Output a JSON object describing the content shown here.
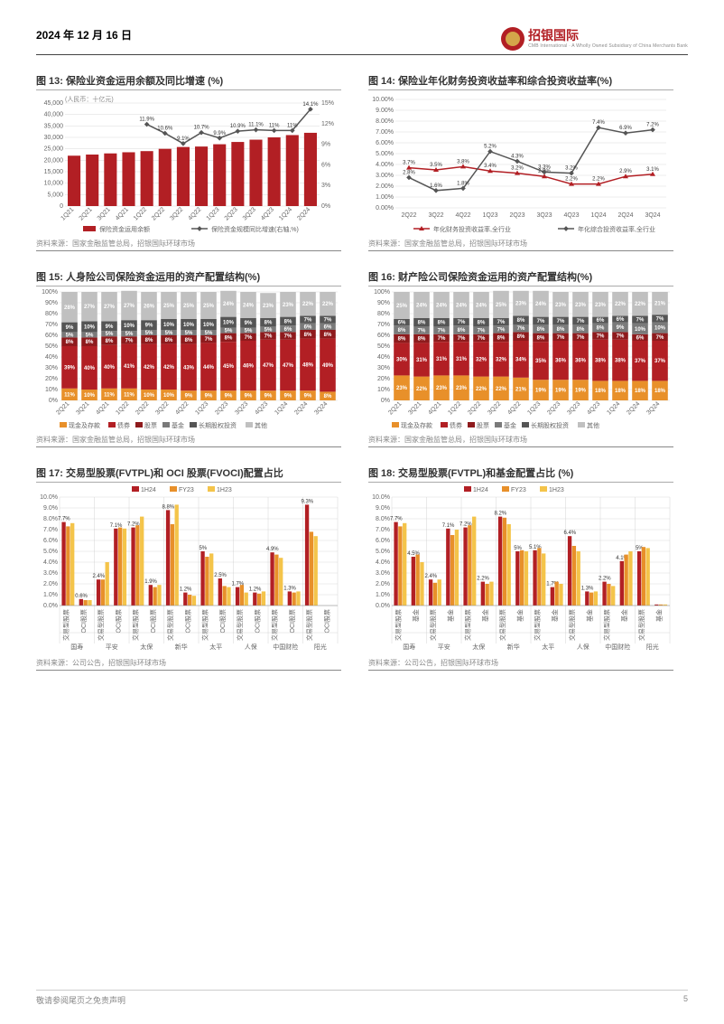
{
  "header": {
    "date": "2024 年 12 月 16 日",
    "brand": "招银国际",
    "brand_sub": "CMB International · A Wholly Owned Subsidiary of China Merchants Bank"
  },
  "footer": {
    "disclaimer": "敬请参阅尾页之免责声明",
    "page": "5"
  },
  "colors": {
    "red": "#b21f24",
    "dark_red": "#8e1a1c",
    "orange": "#e8902a",
    "dark_orange": "#c66a1a",
    "grey": "#7a7a7a",
    "light_grey": "#c0c0c0",
    "dark_grey": "#555",
    "yellow": "#f4c44a",
    "bg": "#ffffff",
    "grid": "#d9d9d9"
  },
  "fig13": {
    "title": "图 13: 保险业资金运用余额及同比增速 (%)",
    "source": "资料来源：国家金融监管总局，招银国际环球市场",
    "y_unit": "(人民币：十亿元)",
    "x": [
      "1Q21",
      "2Q21",
      "3Q21",
      "4Q21",
      "1Q22",
      "2Q22",
      "3Q22",
      "4Q22",
      "1Q23",
      "2Q23",
      "3Q23",
      "4Q23",
      "1Q24",
      "2Q24"
    ],
    "bars": [
      22000,
      22500,
      23000,
      23500,
      24000,
      25000,
      25800,
      26000,
      27000,
      28000,
      29000,
      30000,
      31000,
      32000
    ],
    "bar_color": "#b21f24",
    "line": [
      null,
      null,
      null,
      null,
      11.9,
      10.6,
      9.1,
      10.7,
      9.9,
      10.9,
      11.1,
      11.0,
      11.0,
      14.1
    ],
    "line_color": "#555",
    "y_left_max": 45000,
    "y_left_step": 5000,
    "y_right_max": 15,
    "y_right_step": 3,
    "legend": [
      "保险资金运用余额",
      "保险资金规模同比增速(右轴,%)"
    ]
  },
  "fig14": {
    "title": "图 14: 保险业年化财务投资收益率和综合投资收益率(%)",
    "source": "资料来源：国家金融监管总局，招银国际环球市场",
    "x": [
      "2Q22",
      "3Q22",
      "4Q22",
      "1Q23",
      "2Q23",
      "3Q23",
      "4Q23",
      "1Q24",
      "2Q24",
      "3Q24"
    ],
    "series": [
      {
        "name": "年化财务投资收益率,全行业",
        "color": "#b21f24",
        "marker": "triangle",
        "values": [
          3.7,
          3.5,
          3.8,
          3.4,
          3.2,
          2.9,
          2.2,
          2.2,
          2.9,
          3.1
        ]
      },
      {
        "name": "年化综合投资收益率,全行业",
        "color": "#555",
        "marker": "diamond",
        "values": [
          2.8,
          1.6,
          1.8,
          5.2,
          4.3,
          3.3,
          3.2,
          7.4,
          6.9,
          7.2
        ]
      }
    ],
    "y_max": 10,
    "y_step": 1
  },
  "fig15": {
    "title": "图 15: 人身险公司保险资金运用的资产配置结构(%)",
    "source": "资料来源：国家金融监管总局，招银国际环球市场",
    "x": [
      "2Q21",
      "3Q21",
      "4Q21",
      "1Q22",
      "2Q22",
      "3Q22",
      "4Q22",
      "1Q23",
      "2Q23",
      "3Q23",
      "4Q23",
      "1Q24",
      "2Q24",
      "3Q24"
    ],
    "legend": [
      "现金及存款",
      "债券",
      "股票",
      "基金",
      "长期股权投资",
      "其他"
    ],
    "colors": [
      "#e8902a",
      "#b21f24",
      "#8e1a1c",
      "#7a7a7a",
      "#555",
      "#c0c0c0"
    ],
    "stacks": [
      [
        11,
        39,
        8,
        5,
        9,
        28
      ],
      [
        10,
        40,
        8,
        5,
        10,
        27
      ],
      [
        11,
        40,
        8,
        5,
        9,
        27
      ],
      [
        11,
        41,
        7,
        5,
        10,
        27
      ],
      [
        10,
        42,
        8,
        5,
        9,
        26
      ],
      [
        10,
        42,
        8,
        5,
        10,
        25
      ],
      [
        9,
        43,
        8,
        5,
        10,
        25
      ],
      [
        9,
        44,
        7,
        5,
        10,
        25
      ],
      [
        9,
        45,
        8,
        5,
        10,
        24
      ],
      [
        9,
        46,
        7,
        5,
        9,
        24
      ],
      [
        9,
        47,
        7,
        5,
        8,
        23
      ],
      [
        9,
        47,
        7,
        6,
        8,
        23
      ],
      [
        9,
        48,
        8,
        6,
        7,
        22
      ],
      [
        8,
        49,
        8,
        6,
        7,
        22
      ]
    ],
    "y_max": 100,
    "y_step": 10
  },
  "fig16": {
    "title": "图 16: 财产险公司保险资金运用的资产配置结构(%)",
    "source": "资料来源：国家金融监管总局，招银国际环球市场",
    "x": [
      "2Q21",
      "3Q21",
      "4Q21",
      "1Q22",
      "2Q22",
      "3Q22",
      "4Q22",
      "1Q23",
      "2Q23",
      "3Q23",
      "4Q23",
      "1Q24",
      "2Q24",
      "3Q24"
    ],
    "legend": [
      "现金及存款",
      "债券",
      "股票",
      "基金",
      "长期股权投资",
      "其他"
    ],
    "colors": [
      "#e8902a",
      "#b21f24",
      "#8e1a1c",
      "#7a7a7a",
      "#555",
      "#c0c0c0"
    ],
    "stacks": [
      [
        23,
        30,
        8,
        8,
        6,
        25
      ],
      [
        22,
        31,
        8,
        7,
        8,
        24
      ],
      [
        23,
        31,
        7,
        7,
        8,
        24
      ],
      [
        23,
        31,
        7,
        8,
        7,
        24
      ],
      [
        22,
        32,
        7,
        7,
        8,
        24
      ],
      [
        22,
        32,
        8,
        7,
        7,
        25
      ],
      [
        21,
        34,
        8,
        7,
        8,
        23
      ],
      [
        19,
        35,
        8,
        8,
        7,
        24
      ],
      [
        19,
        36,
        7,
        8,
        7,
        23
      ],
      [
        19,
        36,
        7,
        8,
        7,
        23
      ],
      [
        18,
        38,
        7,
        8,
        6,
        23
      ],
      [
        18,
        38,
        7,
        9,
        6,
        22
      ],
      [
        18,
        37,
        6,
        10,
        7,
        22
      ],
      [
        18,
        37,
        7,
        10,
        7,
        21
      ]
    ],
    "y_max": 100,
    "y_step": 10
  },
  "fig17": {
    "title": "图 17: 交易型股票(FVTPL)和 OCI 股票(FVOCI)配置占比",
    "source": "资料来源：公司公告，招银国际环球市场",
    "legend": [
      "1H24",
      "FY23",
      "1H23"
    ],
    "leg_colors": [
      "#b21f24",
      "#e8902a",
      "#f4c44a"
    ],
    "companies": [
      "国寿",
      "平安",
      "太保",
      "新华",
      "太平",
      "人保",
      "中国财险",
      "阳光"
    ],
    "subcats": [
      "交易型股票",
      "OCI股票"
    ],
    "data": [
      [
        [
          7.7,
          7.3,
          7.6
        ],
        [
          0.6,
          0.5,
          0.5
        ]
      ],
      [
        [
          2.4,
          2.4,
          4.0
        ],
        [
          7.1,
          7.2,
          7.1
        ]
      ],
      [
        [
          7.2,
          7.4,
          8.2
        ],
        [
          1.9,
          1.7,
          1.9
        ]
      ],
      [
        [
          8.8,
          7.5,
          9.3
        ],
        [
          1.2,
          1.0,
          0.9
        ]
      ],
      [
        [
          5.0,
          4.5,
          4.8
        ],
        [
          2.5,
          1.8,
          1.7
        ]
      ],
      [
        [
          1.7,
          1.9,
          1.2
        ],
        [
          1.2,
          1.1,
          1.3
        ]
      ],
      [
        [
          4.9,
          4.7,
          4.4
        ],
        [
          1.3,
          1.2,
          1.3
        ]
      ],
      [
        [
          9.3,
          6.8,
          6.4
        ],
        [
          0.0,
          0.0,
          0.0
        ]
      ]
    ],
    "y_max": 10,
    "y_step": 1
  },
  "fig18": {
    "title": "图 18: 交易型股票(FVTPL)和基金配置占比 (%)",
    "source": "资料来源：公司公告，招银国际环球市场",
    "legend": [
      "1H24",
      "FY23",
      "1H23"
    ],
    "leg_colors": [
      "#b21f24",
      "#e8902a",
      "#f4c44a"
    ],
    "companies": [
      "国寿",
      "平安",
      "太保",
      "新华",
      "太平",
      "人保",
      "中国财险",
      "阳光"
    ],
    "subcats": [
      "交易型股票",
      "基金"
    ],
    "data": [
      [
        [
          7.7,
          7.3,
          7.6
        ],
        [
          4.5,
          4.7,
          4.0
        ]
      ],
      [
        [
          2.4,
          2.1,
          2.4
        ],
        [
          7.1,
          6.5,
          7.0
        ]
      ],
      [
        [
          7.2,
          7.4,
          8.2
        ],
        [
          2.2,
          2.0,
          2.2
        ]
      ],
      [
        [
          8.2,
          8.1,
          7.5
        ],
        [
          5.0,
          5.1,
          5.0
        ]
      ],
      [
        [
          5.1,
          5.3,
          4.8
        ],
        [
          1.7,
          2.2,
          2.0
        ]
      ],
      [
        [
          6.4,
          5.5,
          5.0
        ],
        [
          1.3,
          1.2,
          1.3
        ]
      ],
      [
        [
          2.2,
          2.0,
          1.8
        ],
        [
          4.1,
          4.7,
          5.0
        ]
      ],
      [
        [
          5.0,
          5.4,
          5.3
        ],
        [
          0.1,
          0.1,
          0.1
        ]
      ]
    ],
    "y_max": 10,
    "y_step": 1
  }
}
